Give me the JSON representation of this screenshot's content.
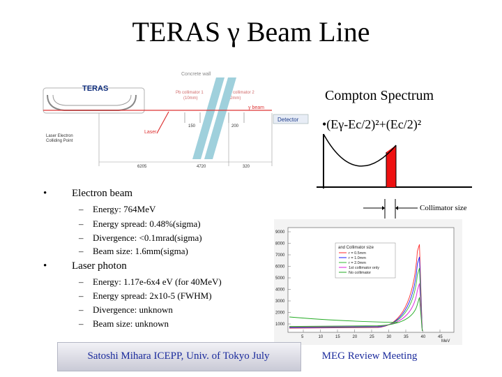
{
  "title": {
    "prefix": "TERAS ",
    "gamma": "γ",
    "suffix": " Beam Line"
  },
  "beamline": {
    "concrete_wall": "Concrete wall",
    "teras": "TERAS",
    "pb_coll1": "Pb collimator 1",
    "pb_coll1_sub": "(10mm)",
    "pb_coll2": "Pb collimator 2",
    "pb_coll2_sub": "(2mm)",
    "gamma_beam": "γ beam",
    "laser": "Laser",
    "les_point1": "Laser Electron",
    "les_point2": "Colliding Point",
    "detector": "Detector",
    "dim_150": "150",
    "dim_200": "200",
    "dim_6205": "6205",
    "dim_4720": "4720",
    "dim_320": "320"
  },
  "compton": {
    "title": "Compton Spectrum",
    "formula": "•(Eγ-Ec/2)²+(Ec/2)²",
    "collimator": "Collimator size"
  },
  "bullets": {
    "electron": {
      "label": "Electron beam",
      "items": [
        "Energy: 764MeV",
        "Energy spread: 0.48%(sigma)",
        "Divergence: <0.1mrad(sigma)",
        "Beam size: 1.6mm(sigma)"
      ]
    },
    "laser": {
      "label": "Laser photon",
      "items": [
        "Energy: 1.17e-6x4 eV (for 40MeV)",
        "Energy spread: 2x10-5 (FWHM)",
        "Divergence: unknown",
        "Beam size: unknown"
      ]
    }
  },
  "plot": {
    "yticks": [
      "9000",
      "8000",
      "7000",
      "6000",
      "5000",
      "4000",
      "3000",
      "2000",
      "1000"
    ],
    "xticks": [
      "5",
      "10",
      "15",
      "20",
      "25",
      "30",
      "35",
      "40",
      "45"
    ],
    "xunit": "MeV",
    "legend_title": "and Collimator size",
    "legend": [
      "r = 0.5mm",
      "r = 1.0mm",
      "r = 2.0mm",
      "1st collimator only",
      "No collimator"
    ],
    "colors": [
      "#ff2a2a",
      "#1a1aff",
      "#33bb33",
      "#dd22dd",
      "#22aa22"
    ]
  },
  "footer": {
    "left": "Satoshi Mihara ICEPP, Univ. of Tokyo July",
    "right": "MEG Review Meeting"
  }
}
